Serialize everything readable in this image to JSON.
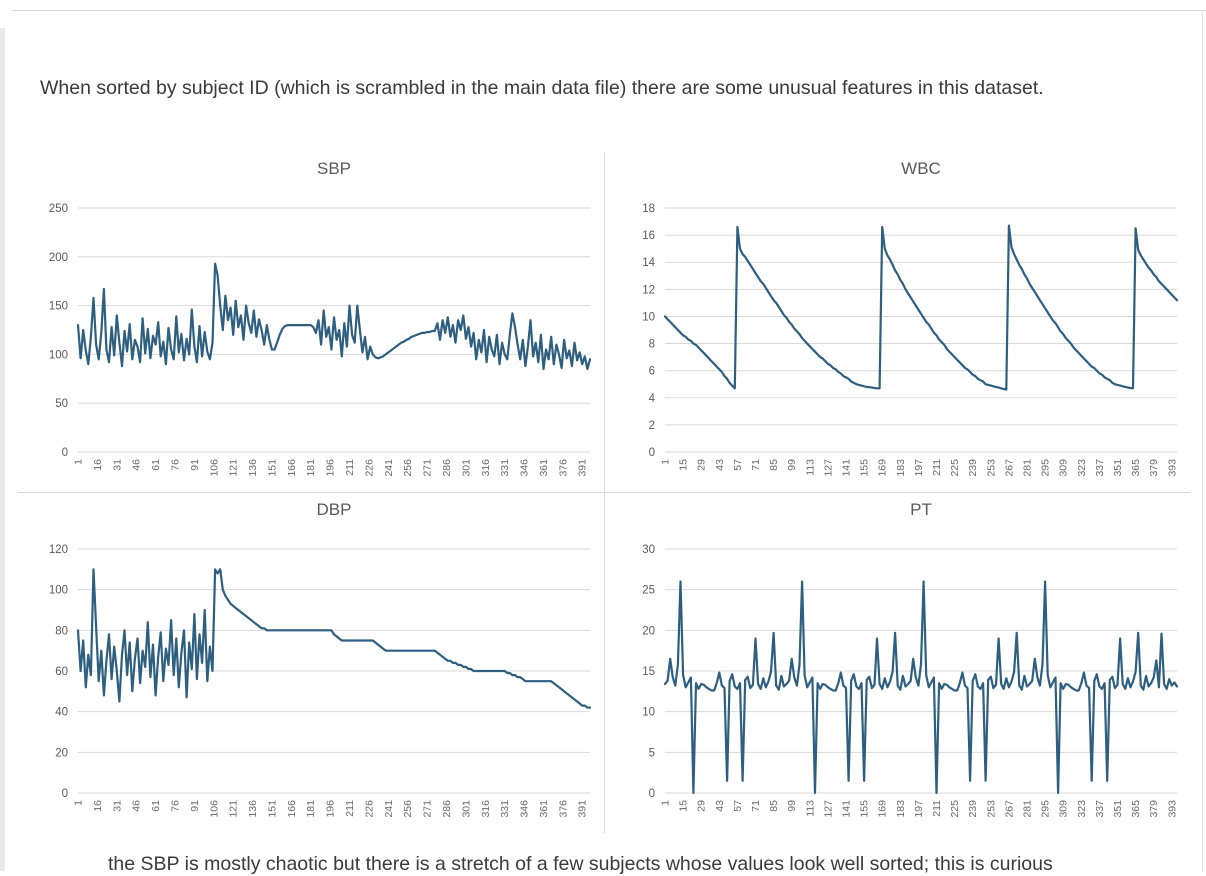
{
  "page": {
    "paragraph": "When sorted by subject ID (which is scrambled in the main data file) there are some unusual features in this dataset.",
    "bottom_partial_text": "the SBP is mostly chaotic but there is a stretch of a few subjects whose values look well sorted; this is curious"
  },
  "colors": {
    "series_line": "#2e5f80",
    "gridline": "#d9d9d9",
    "title_text": "#595959",
    "y_tick_text": "#595959",
    "x_tick_text": "#696969"
  },
  "chart_data": [
    {
      "type": "line",
      "title": "SBP",
      "ylim": [
        0,
        250
      ],
      "y_ticks": [
        0,
        50,
        100,
        150,
        200,
        250
      ],
      "x_ticks": [
        1,
        16,
        31,
        46,
        61,
        76,
        91,
        106,
        121,
        136,
        151,
        166,
        181,
        196,
        211,
        226,
        241,
        256,
        271,
        286,
        301,
        316,
        331,
        346,
        361,
        376,
        391
      ],
      "x_start": 1,
      "x_step": 2,
      "x_max": 397,
      "grid": true,
      "legend": "none",
      "values": [
        130,
        96,
        125,
        104,
        90,
        118,
        158,
        110,
        95,
        122,
        167,
        105,
        92,
        128,
        99,
        140,
        112,
        88,
        124,
        103,
        131,
        95,
        115,
        108,
        92,
        137,
        101,
        126,
        96,
        119,
        110,
        133,
        98,
        113,
        90,
        127,
        105,
        95,
        139,
        102,
        121,
        94,
        116,
        100,
        146,
        108,
        92,
        129,
        98,
        123,
        103,
        95,
        112,
        193,
        181,
        150,
        125,
        160,
        135,
        148,
        120,
        155,
        128,
        140,
        115,
        150,
        132,
        122,
        145,
        118,
        136,
        125,
        110,
        130,
        115,
        105,
        105,
        112,
        120,
        126,
        129,
        130,
        130,
        130,
        130,
        130,
        130,
        130,
        130,
        130,
        130,
        128,
        122,
        135,
        110,
        145,
        118,
        128,
        105,
        138,
        115,
        125,
        98,
        132,
        108,
        150,
        120,
        112,
        150,
        125,
        102,
        118,
        95,
        108,
        100,
        97,
        96,
        97,
        98,
        100,
        102,
        104,
        106,
        108,
        110,
        112,
        113,
        115,
        116,
        118,
        119,
        120,
        121,
        122,
        122,
        123,
        123,
        124,
        124,
        132,
        115,
        135,
        122,
        138,
        118,
        130,
        112,
        135,
        125,
        140,
        116,
        128,
        108,
        122,
        95,
        115,
        102,
        125,
        92,
        118,
        105,
        98,
        120,
        90,
        112,
        100,
        95,
        120,
        142,
        128,
        110,
        95,
        115,
        88,
        108,
        135,
        98,
        112,
        92,
        120,
        85,
        105,
        95,
        118,
        90,
        110,
        100,
        86,
        115,
        96,
        104,
        88,
        112,
        94,
        102,
        90,
        98,
        85,
        95
      ]
    },
    {
      "type": "line",
      "title": "WBC",
      "ylim": [
        0,
        18
      ],
      "y_ticks": [
        0,
        2,
        4,
        6,
        8,
        10,
        12,
        14,
        16,
        18
      ],
      "x_ticks": [
        1,
        15,
        29,
        43,
        57,
        71,
        85,
        99,
        113,
        127,
        141,
        155,
        169,
        183,
        197,
        211,
        225,
        239,
        253,
        267,
        281,
        295,
        309,
        323,
        337,
        351,
        365,
        379,
        393
      ],
      "x_start": 1,
      "x_step": 2,
      "x_max": 397,
      "grid": true,
      "legend": "none",
      "values": [
        10.0,
        9.8,
        9.6,
        9.4,
        9.2,
        9.0,
        8.8,
        8.6,
        8.5,
        8.3,
        8.2,
        8.0,
        7.9,
        7.7,
        7.5,
        7.3,
        7.1,
        6.9,
        6.7,
        6.5,
        6.3,
        6.1,
        5.9,
        5.6,
        5.4,
        5.1,
        4.9,
        4.7,
        16.6,
        15.0,
        14.6,
        14.4,
        14.1,
        13.8,
        13.5,
        13.2,
        12.9,
        12.6,
        12.4,
        12.1,
        11.8,
        11.5,
        11.2,
        11.0,
        10.7,
        10.4,
        10.1,
        9.9,
        9.6,
        9.4,
        9.1,
        8.9,
        8.7,
        8.4,
        8.2,
        8.0,
        7.8,
        7.6,
        7.4,
        7.2,
        7.0,
        6.9,
        6.7,
        6.5,
        6.4,
        6.2,
        6.1,
        5.9,
        5.8,
        5.6,
        5.5,
        5.4,
        5.2,
        5.1,
        5.0,
        4.95,
        4.9,
        4.85,
        4.8,
        4.78,
        4.75,
        4.72,
        4.7,
        4.7,
        16.6,
        15.0,
        14.5,
        14.2,
        13.8,
        13.4,
        13.1,
        12.7,
        12.4,
        12.0,
        11.7,
        11.4,
        11.1,
        10.8,
        10.5,
        10.2,
        9.9,
        9.6,
        9.4,
        9.1,
        8.8,
        8.6,
        8.3,
        8.1,
        7.9,
        7.6,
        7.4,
        7.2,
        7.0,
        6.8,
        6.6,
        6.4,
        6.2,
        6.1,
        5.9,
        5.7,
        5.6,
        5.4,
        5.3,
        5.2,
        5.0,
        4.95,
        4.9,
        4.85,
        4.8,
        4.75,
        4.7,
        4.65,
        4.6,
        16.7,
        15.1,
        14.6,
        14.2,
        13.8,
        13.5,
        13.1,
        12.8,
        12.4,
        12.1,
        11.8,
        11.5,
        11.2,
        10.9,
        10.6,
        10.3,
        10.0,
        9.7,
        9.5,
        9.2,
        8.9,
        8.7,
        8.4,
        8.2,
        8.0,
        7.7,
        7.5,
        7.3,
        7.1,
        6.9,
        6.7,
        6.5,
        6.3,
        6.2,
        6.0,
        5.8,
        5.7,
        5.5,
        5.4,
        5.3,
        5.1,
        5.0,
        4.95,
        4.9,
        4.85,
        4.8,
        4.75,
        4.72,
        4.7,
        16.5,
        14.9,
        14.5,
        14.2,
        13.9,
        13.6,
        13.4,
        13.1,
        12.9,
        12.6,
        12.4,
        12.2,
        12.0,
        11.8,
        11.6,
        11.4,
        11.2
      ]
    },
    {
      "type": "line",
      "title": "DBP",
      "ylim": [
        0,
        120
      ],
      "y_ticks": [
        0,
        20,
        40,
        60,
        80,
        100,
        120
      ],
      "x_ticks": [
        1,
        16,
        31,
        46,
        61,
        76,
        91,
        106,
        121,
        136,
        151,
        166,
        181,
        196,
        211,
        226,
        241,
        256,
        271,
        286,
        301,
        316,
        331,
        346,
        361,
        376,
        391
      ],
      "x_start": 1,
      "x_step": 2,
      "x_max": 397,
      "grid": true,
      "legend": "none",
      "values": [
        80,
        60,
        75,
        52,
        68,
        58,
        110,
        82,
        55,
        70,
        48,
        65,
        78,
        56,
        72,
        60,
        45,
        68,
        80,
        58,
        74,
        50,
        66,
        76,
        54,
        70,
        62,
        84,
        57,
        73,
        48,
        67,
        79,
        55,
        71,
        63,
        85,
        58,
        76,
        52,
        69,
        80,
        47,
        74,
        61,
        88,
        56,
        78,
        64,
        90,
        55,
        72,
        60,
        110,
        108,
        110,
        100,
        97,
        95,
        93,
        92,
        91,
        90,
        89,
        88,
        87,
        86,
        85,
        84,
        83,
        82,
        81,
        81,
        80,
        80,
        80,
        80,
        80,
        80,
        80,
        80,
        80,
        80,
        80,
        80,
        80,
        80,
        80,
        80,
        80,
        80,
        80,
        80,
        80,
        80,
        80,
        80,
        80,
        80,
        78,
        77,
        76,
        75,
        75,
        75,
        75,
        75,
        75,
        75,
        75,
        75,
        75,
        75,
        75,
        75,
        74,
        73,
        72,
        71,
        70,
        70,
        70,
        70,
        70,
        70,
        70,
        70,
        70,
        70,
        70,
        70,
        70,
        70,
        70,
        70,
        70,
        70,
        70,
        70,
        69,
        68,
        67,
        66,
        65,
        65,
        64,
        64,
        63,
        63,
        62,
        62,
        61,
        61,
        60,
        60,
        60,
        60,
        60,
        60,
        60,
        60,
        60,
        60,
        60,
        60,
        60,
        59,
        59,
        58,
        58,
        57,
        57,
        56,
        55,
        55,
        55,
        55,
        55,
        55,
        55,
        55,
        55,
        55,
        55,
        54,
        53,
        52,
        51,
        50,
        49,
        48,
        47,
        46,
        45,
        44,
        43,
        43,
        42,
        42
      ]
    },
    {
      "type": "line",
      "title": "PT",
      "ylim": [
        0,
        30
      ],
      "y_ticks": [
        0,
        5,
        10,
        15,
        20,
        25,
        30
      ],
      "x_ticks": [
        1,
        15,
        29,
        43,
        57,
        71,
        85,
        99,
        113,
        127,
        141,
        155,
        169,
        183,
        197,
        211,
        225,
        239,
        253,
        267,
        281,
        295,
        309,
        323,
        337,
        351,
        365,
        379,
        393
      ],
      "x_start": 1,
      "x_step": 2,
      "x_max": 397,
      "grid": true,
      "legend": "none",
      "values": [
        13.4,
        13.8,
        16.5,
        14.2,
        13.2,
        15.8,
        26.0,
        14.5,
        13.0,
        13.6,
        14.2,
        0.0,
        13.5,
        12.8,
        13.4,
        13.3,
        13.0,
        12.8,
        12.6,
        12.6,
        13.5,
        14.8,
        13.2,
        12.9,
        1.5,
        13.8,
        14.6,
        13.1,
        12.8,
        13.5,
        1.5,
        13.9,
        14.3,
        12.9,
        13.3,
        19.0,
        13.4,
        12.8,
        14.1,
        13.0,
        13.7,
        14.9,
        19.7,
        13.2,
        12.7,
        14.4,
        13.1,
        13.4,
        13.8,
        16.5,
        14.2,
        13.2,
        15.8,
        26.0,
        14.5,
        13.0,
        13.6,
        14.2,
        0.0,
        13.5,
        12.8,
        13.4,
        13.3,
        13.0,
        12.8,
        12.6,
        12.6,
        13.5,
        14.8,
        13.2,
        12.9,
        1.5,
        13.8,
        14.6,
        13.1,
        12.8,
        13.5,
        1.5,
        13.9,
        14.3,
        12.9,
        13.3,
        19.0,
        13.4,
        12.8,
        14.1,
        13.0,
        13.7,
        14.9,
        19.7,
        13.2,
        12.7,
        14.4,
        13.1,
        13.4,
        13.8,
        16.5,
        14.2,
        13.2,
        15.8,
        26.0,
        14.5,
        13.0,
        13.6,
        14.2,
        0.0,
        13.5,
        12.8,
        13.4,
        13.3,
        13.0,
        12.8,
        12.6,
        12.6,
        13.5,
        14.8,
        13.2,
        12.9,
        1.5,
        13.8,
        14.6,
        13.1,
        12.8,
        13.5,
        1.5,
        13.9,
        14.3,
        12.9,
        13.3,
        19.0,
        13.4,
        12.8,
        14.1,
        13.0,
        13.7,
        14.9,
        19.7,
        13.2,
        12.7,
        14.4,
        13.1,
        13.4,
        13.8,
        16.5,
        14.2,
        13.2,
        15.8,
        26.0,
        14.5,
        13.0,
        13.6,
        14.2,
        0.0,
        13.5,
        12.8,
        13.4,
        13.3,
        13.0,
        12.8,
        12.6,
        12.6,
        13.5,
        14.8,
        13.2,
        12.9,
        1.5,
        13.8,
        14.6,
        13.1,
        12.8,
        13.5,
        1.5,
        13.9,
        14.3,
        12.9,
        13.3,
        19.0,
        13.4,
        12.8,
        14.1,
        13.0,
        13.7,
        14.9,
        19.7,
        13.2,
        12.7,
        14.4,
        13.1,
        13.5,
        14.2,
        16.3,
        13.0,
        19.6,
        13.4,
        12.8,
        14.0,
        13.2,
        13.6,
        13.1
      ]
    }
  ]
}
